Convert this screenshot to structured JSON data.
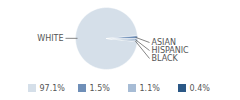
{
  "chart_data": {
    "type": "pie",
    "categories": [
      "WHITE",
      "ASIAN",
      "HISPANIC",
      "BLACK"
    ],
    "values": [
      97.1,
      1.5,
      1.1,
      0.4
    ],
    "value_labels": [
      "97.1%",
      "1.5%",
      "1.1%",
      "0.4%"
    ],
    "colors": [
      "#d5dfe9",
      "#6f8fb8",
      "#a7bcd5",
      "#2b5886"
    ],
    "legend": "bottom"
  }
}
